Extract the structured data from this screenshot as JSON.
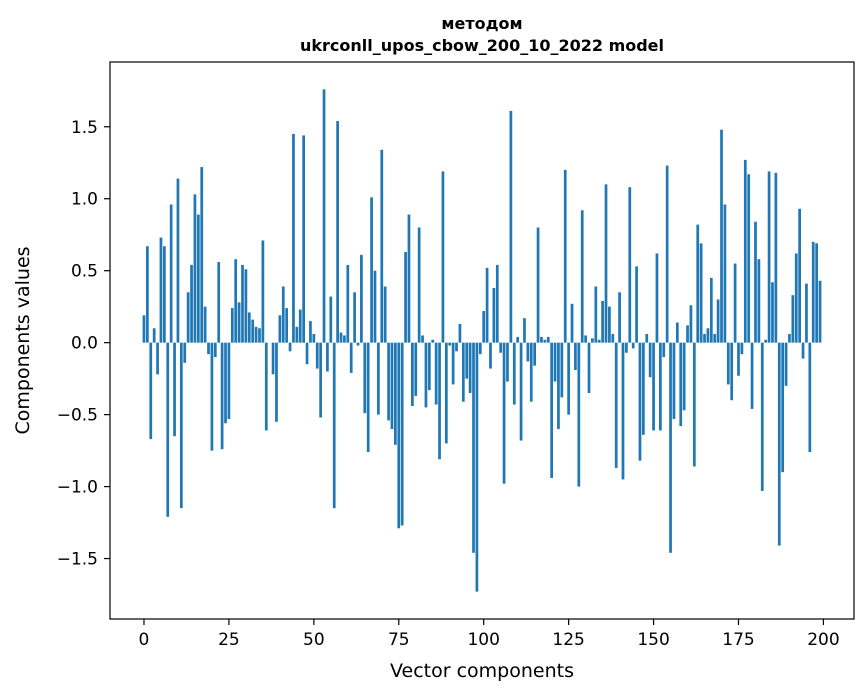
{
  "chart_data": {
    "type": "bar",
    "title_line1": "методом",
    "title_line2": "ukrconll_upos_cbow_200_10_2022 model",
    "xlabel": "Vector components",
    "ylabel": "Components values",
    "xlim": [
      -10,
      209
    ],
    "ylim": [
      -1.92,
      1.95
    ],
    "xticks": [
      0,
      25,
      50,
      75,
      100,
      125,
      150,
      175,
      200
    ],
    "xtick_labels": [
      "0",
      "25",
      "50",
      "75",
      "100",
      "125",
      "150",
      "175",
      "200"
    ],
    "yticks": [
      -1.5,
      -1.0,
      -0.5,
      0.0,
      0.5,
      1.0,
      1.5
    ],
    "ytick_labels": [
      "−1.5",
      "−1.0",
      "−0.5",
      "0.0",
      "0.5",
      "1.0",
      "1.5"
    ],
    "grid": false,
    "bar_color": "#1f77b4",
    "values": [
      0.19,
      0.67,
      -0.67,
      0.1,
      -0.22,
      0.73,
      0.67,
      -1.21,
      0.96,
      -0.65,
      1.14,
      -1.15,
      -0.14,
      0.35,
      0.54,
      1.03,
      0.89,
      1.22,
      0.25,
      -0.08,
      -0.75,
      -0.1,
      0.56,
      -0.74,
      -0.56,
      -0.53,
      0.24,
      0.58,
      0.28,
      0.54,
      0.51,
      0.21,
      0.16,
      0.11,
      0.1,
      0.71,
      -0.61,
      0.0,
      -0.22,
      -0.55,
      0.19,
      0.39,
      0.24,
      -0.06,
      1.45,
      0.11,
      0.23,
      1.44,
      -0.15,
      0.15,
      0.06,
      -0.18,
      -0.52,
      1.76,
      -0.2,
      0.32,
      -1.15,
      1.54,
      0.07,
      0.05,
      0.54,
      -0.21,
      0.35,
      -0.02,
      0.61,
      -0.49,
      -0.76,
      1.01,
      0.5,
      -0.5,
      1.34,
      0.39,
      -0.54,
      -0.6,
      -0.71,
      -1.29,
      -1.27,
      0.63,
      0.89,
      -0.44,
      -0.37,
      0.8,
      0.05,
      -0.45,
      -0.33,
      0.02,
      -0.43,
      -0.81,
      1.19,
      -0.7,
      -0.02,
      -0.29,
      -0.06,
      0.13,
      -0.41,
      -0.25,
      -0.35,
      -1.46,
      -1.73,
      -0.08,
      0.22,
      0.52,
      -0.18,
      0.38,
      0.54,
      -0.07,
      -0.98,
      -0.27,
      1.61,
      -0.43,
      0.04,
      -0.68,
      0.17,
      -0.13,
      -0.41,
      -0.16,
      0.8,
      0.04,
      0.02,
      0.04,
      -0.94,
      -0.27,
      -0.6,
      -0.38,
      1.2,
      -0.5,
      0.27,
      -0.19,
      -1.0,
      0.92,
      0.05,
      -0.35,
      0.03,
      0.39,
      0.02,
      0.29,
      1.1,
      0.25,
      0.06,
      -0.87,
      0.35,
      -0.95,
      -0.07,
      1.08,
      -0.04,
      0.53,
      -0.82,
      -0.64,
      0.06,
      -0.24,
      -0.61,
      0.62,
      -0.61,
      -0.1,
      1.23,
      -1.46,
      -0.53,
      0.14,
      -0.58,
      -0.47,
      0.12,
      0.26,
      -0.86,
      0.82,
      0.69,
      0.06,
      0.1,
      0.45,
      0.06,
      0.3,
      1.48,
      0.96,
      -0.29,
      -0.4,
      0.55,
      -0.23,
      -0.08,
      1.27,
      1.17,
      -0.46,
      0.84,
      0.58,
      -1.03,
      0.02,
      1.19,
      0.42,
      1.18,
      -1.41,
      -0.9,
      -0.3,
      0.06,
      0.33,
      0.62,
      0.93,
      -0.11,
      0.41,
      -0.76,
      0.7,
      0.69,
      0.43
    ]
  }
}
